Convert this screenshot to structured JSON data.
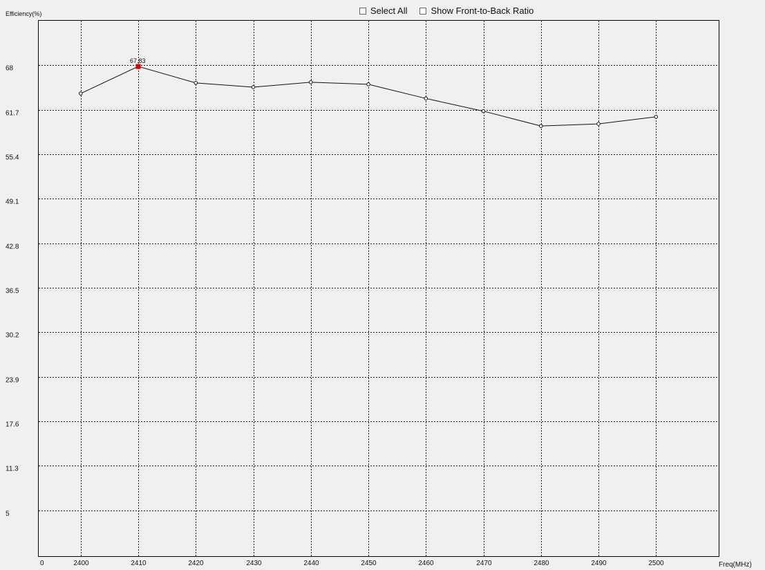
{
  "controls": {
    "select_all_label": "Select All",
    "front_back_label": "Show Front-to-Back Ratio"
  },
  "chart_data": {
    "type": "line",
    "xlabel": "Freq(MHz)",
    "ylabel": "Efficiency(%)",
    "x_origin_label": "0",
    "x_ticks": [
      2400,
      2410,
      2420,
      2430,
      2440,
      2450,
      2460,
      2470,
      2480,
      2490,
      2500
    ],
    "y_ticks": [
      5,
      11.3,
      17.6,
      23.9,
      30.2,
      36.5,
      42.8,
      49.1,
      55.4,
      61.7,
      68
    ],
    "xlim": [
      2392.7,
      2510.9
    ],
    "ylim": [
      -1.5,
      74.3
    ],
    "grid": true,
    "series": [
      {
        "x": [
          2400,
          2410,
          2420,
          2430,
          2440,
          2450,
          2460,
          2470,
          2480,
          2490,
          2500
        ],
        "values": [
          64.0,
          67.83,
          65.5,
          64.9,
          65.6,
          65.3,
          63.3,
          61.5,
          59.4,
          59.7,
          60.7
        ]
      }
    ],
    "highlight": {
      "x": 2410,
      "value": 67.83,
      "label": "67.83",
      "color": "#d40000"
    }
  }
}
